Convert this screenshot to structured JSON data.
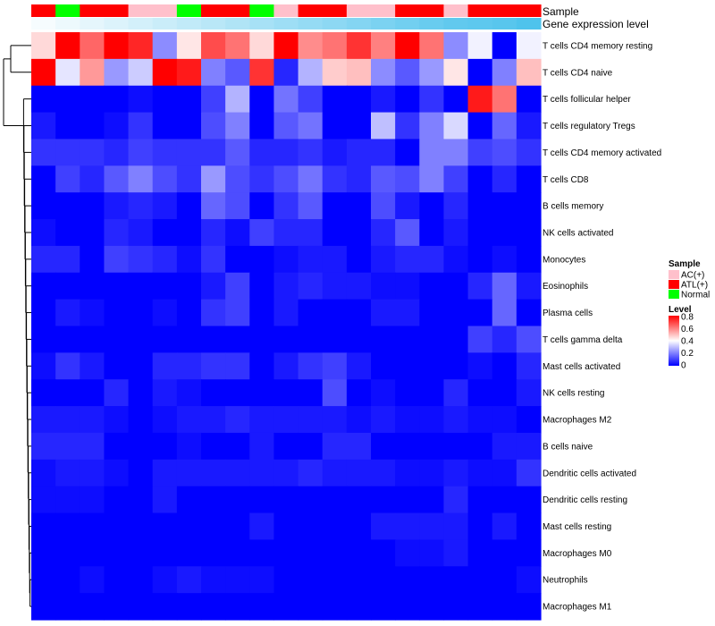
{
  "chart_data": {
    "type": "heatmap",
    "title": "",
    "annotation_rows": [
      {
        "label": "Sample"
      },
      {
        "label": "Gene expression level"
      }
    ],
    "samples": [
      {
        "group": "ATL(+)",
        "expression": 0.05
      },
      {
        "group": "Normal",
        "expression": 0.1
      },
      {
        "group": "ATL(+)",
        "expression": 0.15
      },
      {
        "group": "ATL(+)",
        "expression": 0.2
      },
      {
        "group": "AC(+)",
        "expression": 0.25
      },
      {
        "group": "AC(+)",
        "expression": 0.3
      },
      {
        "group": "Normal",
        "expression": 0.35
      },
      {
        "group": "ATL(+)",
        "expression": 0.4
      },
      {
        "group": "ATL(+)",
        "expression": 0.45
      },
      {
        "group": "Normal",
        "expression": 0.5
      },
      {
        "group": "AC(+)",
        "expression": 0.55
      },
      {
        "group": "ATL(+)",
        "expression": 0.6
      },
      {
        "group": "ATL(+)",
        "expression": 0.65
      },
      {
        "group": "AC(+)",
        "expression": 0.7
      },
      {
        "group": "AC(+)",
        "expression": 0.75
      },
      {
        "group": "ATL(+)",
        "expression": 0.8
      },
      {
        "group": "ATL(+)",
        "expression": 0.85
      },
      {
        "group": "AC(+)",
        "expression": 0.9
      },
      {
        "group": "ATL(+)",
        "expression": 0.92
      },
      {
        "group": "ATL(+)",
        "expression": 0.95
      },
      {
        "group": "ATL(+)",
        "expression": 1.0
      }
    ],
    "row_labels": [
      "T cells CD4 memory resting",
      "T cells CD4 naive",
      "T cells follicular helper",
      "T cells regulatory  Tregs",
      "T cells CD4 memory activated",
      "T cells CD8",
      "B cells memory",
      "NK cells activated",
      "Monocytes",
      "Eosinophils",
      "Plasma cells",
      "T cells gamma delta",
      "Mast cells activated",
      "NK cells resting",
      "Macrophages M2",
      "B cells naive",
      "Dendritic cells activated",
      "Dendritic cells resting",
      "Mast cells resting",
      "Macrophages M0",
      "Neutrophils",
      "Macrophages M1"
    ],
    "values": [
      [
        0.46,
        0.8,
        0.64,
        0.8,
        0.74,
        0.22,
        0.44,
        0.68,
        0.62,
        0.46,
        0.8,
        0.58,
        0.62,
        0.72,
        0.6,
        0.8,
        0.62,
        0.22,
        0.38,
        0.0,
        0.38
      ],
      [
        0.8,
        0.36,
        0.56,
        0.24,
        0.32,
        0.8,
        0.76,
        0.2,
        0.14,
        0.72,
        0.06,
        0.28,
        0.48,
        0.5,
        0.22,
        0.14,
        0.24,
        0.44,
        0.0,
        0.2,
        0.5
      ],
      [
        0.0,
        0.0,
        0.0,
        0.0,
        0.02,
        0.0,
        0.0,
        0.1,
        0.28,
        0.0,
        0.18,
        0.1,
        0.0,
        0.0,
        0.04,
        0.0,
        0.08,
        0.0,
        0.76,
        0.62,
        0.0
      ],
      [
        0.04,
        0.0,
        0.0,
        0.02,
        0.08,
        0.0,
        0.0,
        0.12,
        0.2,
        0.0,
        0.14,
        0.18,
        0.0,
        0.0,
        0.3,
        0.08,
        0.2,
        0.34,
        0.0,
        0.16,
        0.04
      ],
      [
        0.08,
        0.08,
        0.08,
        0.06,
        0.1,
        0.08,
        0.08,
        0.08,
        0.14,
        0.06,
        0.06,
        0.08,
        0.04,
        0.06,
        0.06,
        0.0,
        0.2,
        0.2,
        0.1,
        0.12,
        0.08
      ],
      [
        0.0,
        0.1,
        0.06,
        0.14,
        0.2,
        0.12,
        0.08,
        0.24,
        0.12,
        0.08,
        0.12,
        0.18,
        0.08,
        0.06,
        0.14,
        0.12,
        0.2,
        0.1,
        0.0,
        0.06,
        0.0
      ],
      [
        0.0,
        0.0,
        0.0,
        0.04,
        0.06,
        0.04,
        0.0,
        0.16,
        0.12,
        0.0,
        0.08,
        0.14,
        0.0,
        0.0,
        0.12,
        0.04,
        0.0,
        0.06,
        0.0,
        0.0,
        0.0
      ],
      [
        0.02,
        0.0,
        0.0,
        0.06,
        0.04,
        0.0,
        0.0,
        0.06,
        0.02,
        0.1,
        0.06,
        0.06,
        0.0,
        0.0,
        0.06,
        0.14,
        0.0,
        0.04,
        0.0,
        0.0,
        0.0
      ],
      [
        0.06,
        0.06,
        0.0,
        0.1,
        0.08,
        0.06,
        0.02,
        0.08,
        0.0,
        0.0,
        0.02,
        0.04,
        0.04,
        0.0,
        0.04,
        0.06,
        0.06,
        0.02,
        0.0,
        0.02,
        0.0
      ],
      [
        0.0,
        0.0,
        0.0,
        0.0,
        0.0,
        0.0,
        0.0,
        0.04,
        0.1,
        0.0,
        0.04,
        0.06,
        0.04,
        0.04,
        0.02,
        0.02,
        0.0,
        0.0,
        0.06,
        0.16,
        0.04
      ],
      [
        0.0,
        0.04,
        0.02,
        0.0,
        0.0,
        0.02,
        0.0,
        0.08,
        0.1,
        0.0,
        0.04,
        0.0,
        0.0,
        0.0,
        0.04,
        0.04,
        0.0,
        0.0,
        0.0,
        0.16,
        0.0
      ],
      [
        0.0,
        0.0,
        0.0,
        0.0,
        0.0,
        0.0,
        0.0,
        0.0,
        0.0,
        0.0,
        0.0,
        0.0,
        0.0,
        0.0,
        0.0,
        0.0,
        0.0,
        0.0,
        0.1,
        0.06,
        0.12
      ],
      [
        0.02,
        0.08,
        0.04,
        0.0,
        0.0,
        0.06,
        0.06,
        0.08,
        0.08,
        0.0,
        0.04,
        0.08,
        0.1,
        0.04,
        0.0,
        0.0,
        0.0,
        0.0,
        0.02,
        0.0,
        0.06
      ],
      [
        0.0,
        0.0,
        0.0,
        0.06,
        0.0,
        0.04,
        0.02,
        0.0,
        0.0,
        0.0,
        0.0,
        0.0,
        0.12,
        0.0,
        0.02,
        0.0,
        0.0,
        0.06,
        0.0,
        0.0,
        0.04
      ],
      [
        0.04,
        0.04,
        0.04,
        0.02,
        0.0,
        0.02,
        0.04,
        0.04,
        0.06,
        0.04,
        0.04,
        0.04,
        0.04,
        0.02,
        0.04,
        0.02,
        0.02,
        0.04,
        0.02,
        0.02,
        0.0
      ],
      [
        0.06,
        0.06,
        0.06,
        0.0,
        0.0,
        0.0,
        0.02,
        0.0,
        0.0,
        0.04,
        0.0,
        0.0,
        0.06,
        0.06,
        0.0,
        0.0,
        0.0,
        0.0,
        0.0,
        0.04,
        0.04
      ],
      [
        0.02,
        0.04,
        0.04,
        0.02,
        0.0,
        0.04,
        0.04,
        0.04,
        0.04,
        0.04,
        0.04,
        0.06,
        0.04,
        0.04,
        0.04,
        0.02,
        0.02,
        0.04,
        0.02,
        0.02,
        0.08
      ],
      [
        0.02,
        0.02,
        0.02,
        0.0,
        0.0,
        0.04,
        0.0,
        0.0,
        0.0,
        0.0,
        0.0,
        0.0,
        0.0,
        0.0,
        0.0,
        0.0,
        0.0,
        0.06,
        0.0,
        0.0,
        0.0
      ],
      [
        0.0,
        0.0,
        0.0,
        0.0,
        0.0,
        0.0,
        0.0,
        0.0,
        0.0,
        0.04,
        0.0,
        0.0,
        0.0,
        0.0,
        0.04,
        0.04,
        0.04,
        0.04,
        0.0,
        0.04,
        0.0
      ],
      [
        0.0,
        0.0,
        0.0,
        0.0,
        0.0,
        0.0,
        0.0,
        0.0,
        0.0,
        0.0,
        0.0,
        0.0,
        0.0,
        0.0,
        0.0,
        0.02,
        0.02,
        0.04,
        0.0,
        0.0,
        0.0
      ],
      [
        0.0,
        0.0,
        0.02,
        0.0,
        0.0,
        0.02,
        0.04,
        0.02,
        0.02,
        0.02,
        0.0,
        0.0,
        0.0,
        0.0,
        0.0,
        0.0,
        0.0,
        0.0,
        0.0,
        0.0,
        0.02
      ],
      [
        0.0,
        0.0,
        0.0,
        0.0,
        0.0,
        0.0,
        0.0,
        0.0,
        0.0,
        0.0,
        0.0,
        0.0,
        0.0,
        0.0,
        0.0,
        0.0,
        0.0,
        0.0,
        0.0,
        0.0,
        0.0
      ]
    ],
    "color_scale": {
      "min": 0,
      "max": 0.8,
      "low": "#0000ff",
      "mid": "#ffffff",
      "high": "#ff0000",
      "midpoint": 0.4
    },
    "expression_scale": {
      "low": "#ffffff",
      "high": "#4fc3ec"
    },
    "legend": {
      "sample_title": "Sample",
      "sample_entries": [
        {
          "label": "AC(+)",
          "color": "#ffc0cb"
        },
        {
          "label": "ATL(+)",
          "color": "#ff0000"
        },
        {
          "label": "Normal",
          "color": "#00ff00"
        }
      ],
      "level_title": "Level",
      "level_ticks": [
        "0.8",
        "0.6",
        "0.4",
        "0.2",
        "0"
      ]
    }
  }
}
